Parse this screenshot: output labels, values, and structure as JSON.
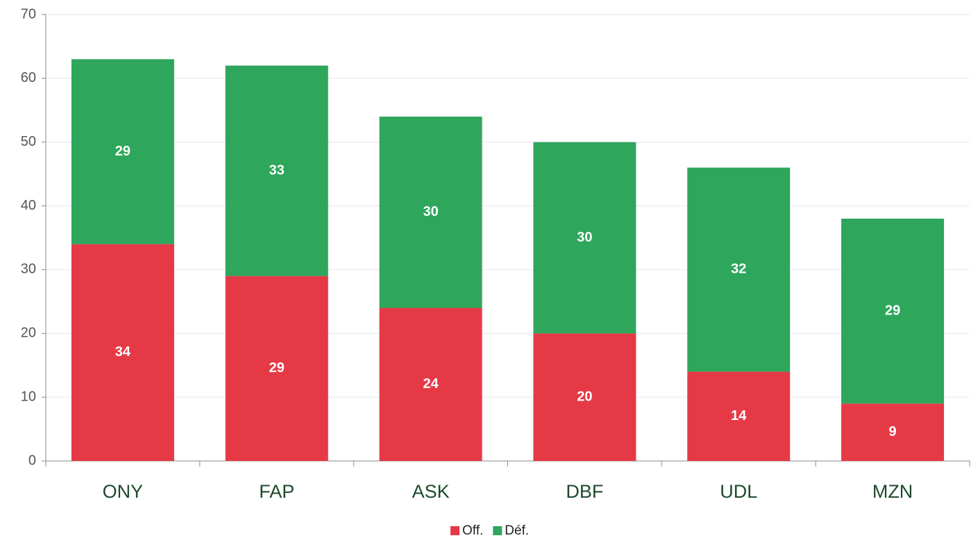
{
  "chart_data": {
    "type": "stacked_bar",
    "categories": [
      "ONY",
      "FAP",
      "ASK",
      "DBF",
      "UDL",
      "MZN"
    ],
    "series": [
      {
        "name": "Off.",
        "color": "#e63946",
        "values": [
          34,
          29,
          24,
          20,
          14,
          9
        ]
      },
      {
        "name": "Déf.",
        "color": "#2ea65c",
        "values": [
          29,
          33,
          30,
          30,
          32,
          29
        ]
      }
    ],
    "ylim": [
      0,
      70
    ],
    "yticks": [
      0,
      10,
      20,
      30,
      40,
      50,
      60,
      70
    ],
    "grid": true,
    "legend": "bottom"
  }
}
